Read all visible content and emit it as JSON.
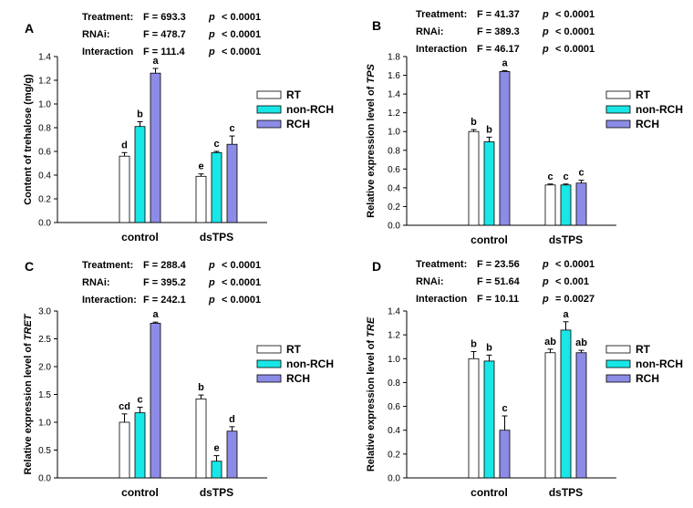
{
  "legend_colors": {
    "RT": "#ffffff",
    "non-RCH": "#19e6e6",
    "RCH": "#8c8ce6"
  },
  "chart_data": [
    {
      "id": "A",
      "type": "bar",
      "panel_label": "A",
      "ylabel_parts": [
        {
          "text": "Content of trehalose (mg/g)",
          "italic": false
        }
      ],
      "categories": [
        "control",
        "dsTPS"
      ],
      "ylim": [
        0,
        1.4
      ],
      "yticks": [
        "0.0",
        "0.2",
        "0.4",
        "0.6",
        "0.8",
        "1.0",
        "1.2",
        "1.4"
      ],
      "grid": false,
      "legend_position": "right",
      "stats": [
        {
          "label": "Treatment:",
          "f": "F = 693.3",
          "p": "p",
          "pval": "< 0.0001"
        },
        {
          "label": "RNAi:",
          "f": "F = 478.7",
          "p": "p",
          "pval": "< 0.0001"
        },
        {
          "label": "Interaction",
          "f": "F = 111.4",
          "p": "p",
          "pval": "< 0.0001"
        }
      ],
      "series": [
        {
          "name": "RT",
          "values": [
            0.56,
            0.39
          ],
          "errors": [
            0.03,
            0.02
          ],
          "letters": [
            "d",
            "e"
          ]
        },
        {
          "name": "non-RCH",
          "values": [
            0.81,
            0.59
          ],
          "errors": [
            0.04,
            0.01
          ],
          "letters": [
            "b",
            "c"
          ]
        },
        {
          "name": "RCH",
          "values": [
            1.26,
            0.66
          ],
          "errors": [
            0.04,
            0.07
          ],
          "letters": [
            "a",
            "c"
          ]
        }
      ]
    },
    {
      "id": "B",
      "type": "bar",
      "panel_label": "B",
      "ylabel_parts": [
        {
          "text": "Relative expression level of ",
          "italic": false
        },
        {
          "text": "TPS",
          "italic": true
        }
      ],
      "categories": [
        "control",
        "dsTPS"
      ],
      "ylim": [
        0,
        1.8
      ],
      "yticks": [
        "0.0",
        "0.2",
        "0.4",
        "0.6",
        "0.8",
        "1.0",
        "1.2",
        "1.4",
        "1.6",
        "1.8"
      ],
      "grid": false,
      "legend_position": "right",
      "stats": [
        {
          "label": "Treatment:",
          "f": "F = 41.37",
          "p": "p",
          "pval": "< 0.0001"
        },
        {
          "label": "RNAi:",
          "f": "F = 389.3",
          "p": "p",
          "pval": "< 0.0001"
        },
        {
          "label": "Interaction",
          "f": "F = 46.17",
          "p": "p",
          "pval": "< 0.0001"
        }
      ],
      "series": [
        {
          "name": "RT",
          "values": [
            1.0,
            0.43
          ],
          "errors": [
            0.02,
            0.01
          ],
          "letters": [
            "b",
            "c"
          ]
        },
        {
          "name": "non-RCH",
          "values": [
            0.89,
            0.43
          ],
          "errors": [
            0.05,
            0.01
          ],
          "letters": [
            "b",
            "c"
          ]
        },
        {
          "name": "RCH",
          "values": [
            1.64,
            0.45
          ],
          "errors": [
            0.01,
            0.03
          ],
          "letters": [
            "a",
            "c"
          ]
        }
      ]
    },
    {
      "id": "C",
      "type": "bar",
      "panel_label": "C",
      "ylabel_parts": [
        {
          "text": "Relative expression level of ",
          "italic": false
        },
        {
          "text": "TRET",
          "italic": true
        }
      ],
      "categories": [
        "control",
        "dsTPS"
      ],
      "ylim": [
        0,
        3.0
      ],
      "yticks": [
        "0.0",
        "0.5",
        "1.0",
        "1.5",
        "2.0",
        "2.5",
        "3.0"
      ],
      "grid": false,
      "legend_position": "right",
      "stats": [
        {
          "label": "Treatment:",
          "f": "F = 288.4",
          "p": "p",
          "pval": "< 0.0001"
        },
        {
          "label": "RNAi:",
          "f": "F = 395.2",
          "p": "p",
          "pval": "< 0.0001"
        },
        {
          "label": "Interaction:",
          "f": "F = 242.1",
          "p": "p",
          "pval": "< 0.0001"
        }
      ],
      "series": [
        {
          "name": "RT",
          "values": [
            1.0,
            1.42
          ],
          "errors": [
            0.15,
            0.07
          ],
          "letters": [
            "cd",
            "b"
          ]
        },
        {
          "name": "non-RCH",
          "values": [
            1.17,
            0.3
          ],
          "errors": [
            0.1,
            0.1
          ],
          "letters": [
            "c",
            "e"
          ]
        },
        {
          "name": "RCH",
          "values": [
            2.78,
            0.84
          ],
          "errors": [
            0.02,
            0.08
          ],
          "letters": [
            "a",
            "d"
          ]
        }
      ]
    },
    {
      "id": "D",
      "type": "bar",
      "panel_label": "D",
      "ylabel_parts": [
        {
          "text": "Relative expression level of ",
          "italic": false
        },
        {
          "text": "TRE",
          "italic": true
        }
      ],
      "categories": [
        "control",
        "dsTPS"
      ],
      "ylim": [
        0,
        1.4
      ],
      "yticks": [
        "0.0",
        "0.2",
        "0.4",
        "0.6",
        "0.8",
        "1.0",
        "1.2",
        "1.4"
      ],
      "grid": false,
      "legend_position": "right",
      "stats": [
        {
          "label": "Treatment:",
          "f": "F = 23.56",
          "p": "p",
          "pval": "< 0.0001"
        },
        {
          "label": "RNAi:",
          "f": "F = 51.64",
          "p": "p",
          "pval": "< 0.001"
        },
        {
          "label": "Interaction",
          "f": "F = 10.11",
          "p": "p",
          "pval": "= 0.0027"
        }
      ],
      "series": [
        {
          "name": "RT",
          "values": [
            1.0,
            1.05
          ],
          "errors": [
            0.06,
            0.03
          ],
          "letters": [
            "b",
            "ab"
          ]
        },
        {
          "name": "non-RCH",
          "values": [
            0.98,
            1.24
          ],
          "errors": [
            0.05,
            0.07
          ],
          "letters": [
            "b",
            "a"
          ]
        },
        {
          "name": "RCH",
          "values": [
            0.4,
            1.05
          ],
          "errors": [
            0.12,
            0.02
          ],
          "letters": [
            "c",
            "ab"
          ]
        }
      ]
    }
  ]
}
